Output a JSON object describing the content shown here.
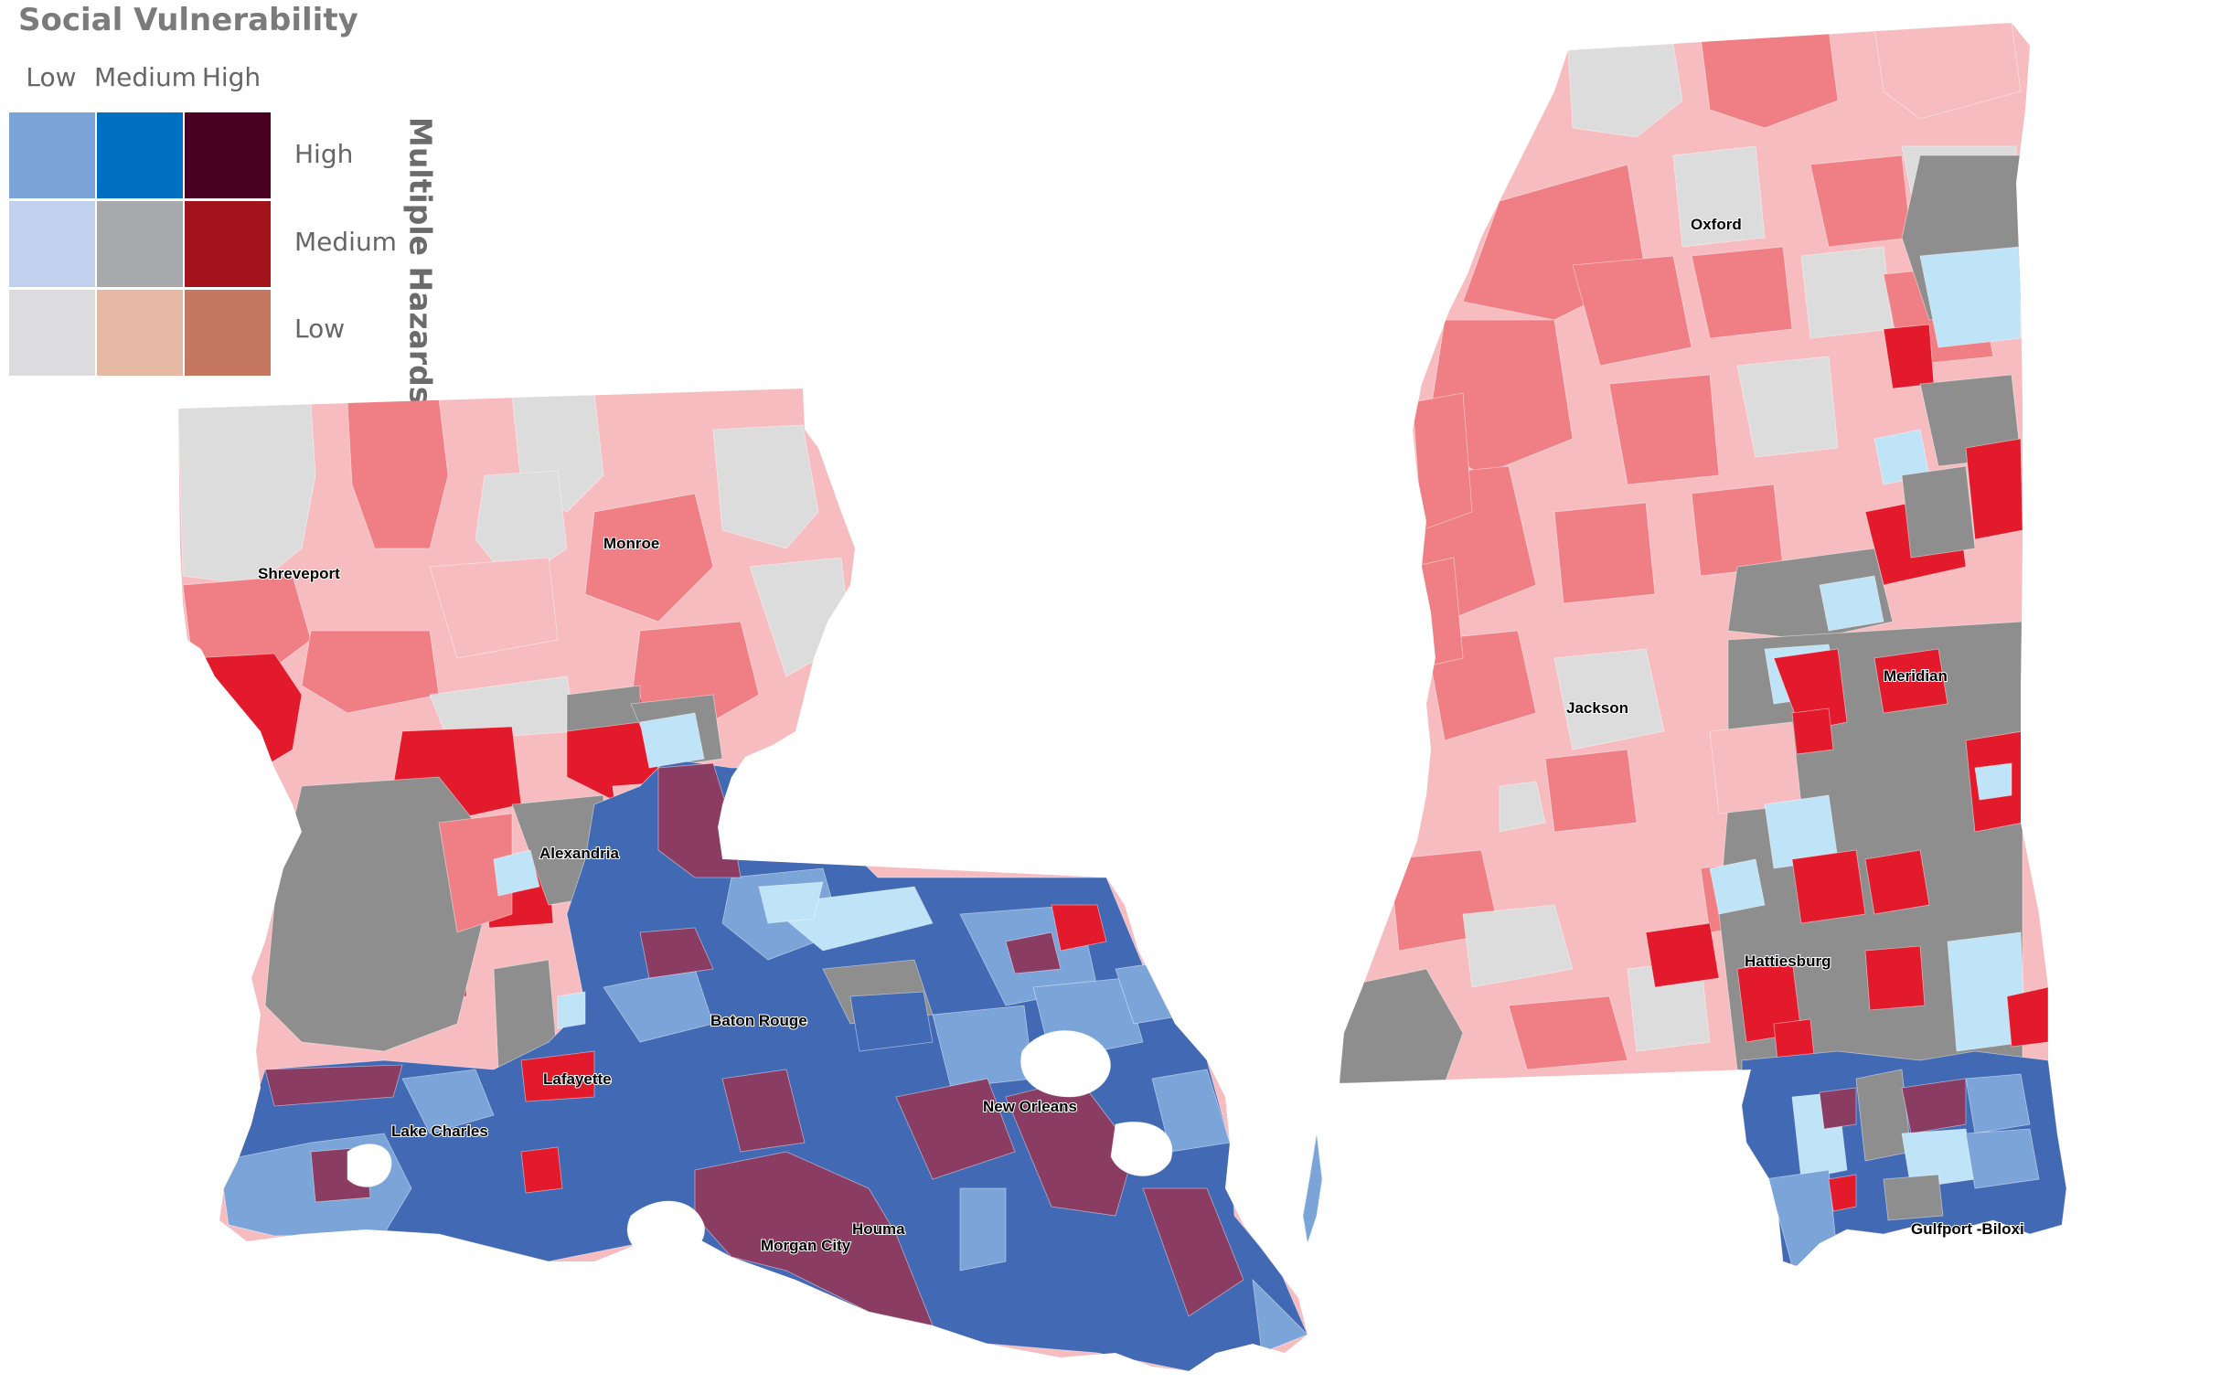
{
  "legend": {
    "title": "Social Vulnerability",
    "columns": [
      "Low",
      "Medium",
      "High"
    ],
    "rows": [
      "High",
      "Medium",
      "Low"
    ],
    "vertical_axis": "Multiple Hazards",
    "colors": [
      [
        "#7ba4d9",
        "#0070c0",
        "#4a0020"
      ],
      [
        "#c0d1ed",
        "#a7a9ac",
        "#a2131c"
      ],
      [
        "#dcdcde",
        "#e6b9a4",
        "#c57760"
      ]
    ]
  },
  "cities": {
    "shreveport": "Shreveport",
    "monroe": "Monroe",
    "alexandria": "Alexandria",
    "baton_rouge": "Baton Rouge",
    "lafayette": "Lafayette",
    "lake_charles": "Lake Charles",
    "new_orleans": "New Orleans",
    "houma": "Houma",
    "morgan_city": "Morgan City",
    "oxford": "Oxford",
    "jackson": "Jackson",
    "meridian": "Meridian",
    "hattiesburg": "Hattiesburg",
    "gulfport_biloxi": "Gulfport -Biloxi"
  },
  "map_colors": {
    "light_pink": "#f7bcc0",
    "salmon": "#ef7f84",
    "red": "#e31a2b",
    "gray": "#8e8e8e",
    "light_gray": "#dcdcdc",
    "light_blue": "#bfe3f7",
    "mid_blue": "#7ba4d9",
    "blue": "#4269b4",
    "plum": "#8b3c62",
    "water": "#ffffff"
  }
}
